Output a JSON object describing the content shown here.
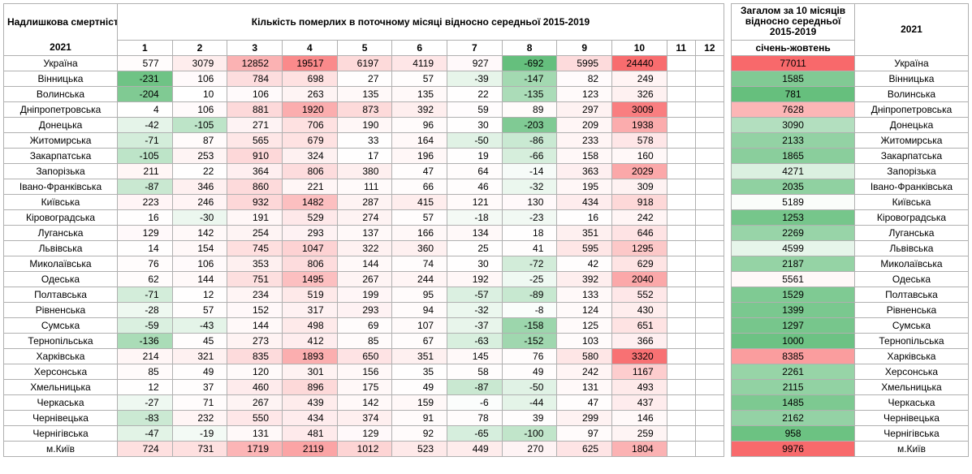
{
  "header": {
    "corner_top": "Надлишкова смертність",
    "corner_year": "2021",
    "monthly_title": "Кількість померлих  в поточному місяці відносно середньої 2015-2019",
    "total_title": "Загалом за 10 місяців відносно середньої 2015-2019",
    "total_sub": "січень-жовтень",
    "right_year": "2021",
    "months": [
      "1",
      "2",
      "3",
      "4",
      "5",
      "6",
      "7",
      "8",
      "9",
      "10",
      "11",
      "12"
    ]
  },
  "colors": {
    "min": "#63be7b",
    "mid": "#ffffff",
    "max": "#f8696b",
    "border": "#b0b0b0"
  },
  "month_scale": {
    "min": -250,
    "max": 3500
  },
  "total_scale": {
    "min": 700,
    "max": 10000
  },
  "ukraine_month_scale": {
    "min": -700,
    "max": 25000
  },
  "ukraine_total_color": "#f8696b",
  "rows": [
    {
      "region": "Україна",
      "m": [
        577,
        3079,
        12852,
        19517,
        6197,
        4119,
        927,
        -692,
        5995,
        24440,
        null,
        null
      ],
      "total": 77011,
      "is_total_row": true
    },
    {
      "region": "Вінницька",
      "m": [
        -231,
        106,
        784,
        698,
        27,
        57,
        -39,
        -147,
        82,
        249,
        null,
        null
      ],
      "total": 1585
    },
    {
      "region": "Волинська",
      "m": [
        -204,
        10,
        106,
        263,
        135,
        135,
        22,
        -135,
        123,
        326,
        null,
        null
      ],
      "total": 781
    },
    {
      "region": "Дніпропетровська",
      "m": [
        4,
        106,
        881,
        1920,
        873,
        392,
        59,
        89,
        297,
        3009,
        null,
        null
      ],
      "total": 7628
    },
    {
      "region": "Донецька",
      "m": [
        -42,
        -105,
        271,
        706,
        190,
        96,
        30,
        -203,
        209,
        1938,
        null,
        null
      ],
      "total": 3090
    },
    {
      "region": "Житомирська",
      "m": [
        -71,
        87,
        565,
        679,
        33,
        164,
        -50,
        -86,
        233,
        578,
        null,
        null
      ],
      "total": 2133
    },
    {
      "region": "Закарпатська",
      "m": [
        -105,
        253,
        910,
        324,
        17,
        196,
        19,
        -66,
        158,
        160,
        null,
        null
      ],
      "total": 1865
    },
    {
      "region": "Запорізька",
      "m": [
        211,
        22,
        364,
        806,
        380,
        47,
        64,
        -14,
        363,
        2029,
        null,
        null
      ],
      "total": 4271
    },
    {
      "region": "Івано-Франківська",
      "m": [
        -87,
        346,
        860,
        221,
        111,
        66,
        46,
        -32,
        195,
        309,
        null,
        null
      ],
      "total": 2035
    },
    {
      "region": "Київська",
      "m": [
        223,
        246,
        932,
        1482,
        287,
        415,
        121,
        130,
        434,
        918,
        null,
        null
      ],
      "total": 5189
    },
    {
      "region": "Кіровоградська",
      "m": [
        16,
        -30,
        191,
        529,
        274,
        57,
        -18,
        -23,
        16,
        242,
        null,
        null
      ],
      "total": 1253
    },
    {
      "region": "Луганська",
      "m": [
        129,
        142,
        254,
        293,
        137,
        166,
        134,
        18,
        351,
        646,
        null,
        null
      ],
      "total": 2269
    },
    {
      "region": "Львівська",
      "m": [
        14,
        154,
        745,
        1047,
        322,
        360,
        25,
        41,
        595,
        1295,
        null,
        null
      ],
      "total": 4599
    },
    {
      "region": "Миколаївська",
      "m": [
        76,
        106,
        353,
        806,
        144,
        74,
        30,
        -72,
        42,
        629,
        null,
        null
      ],
      "total": 2187
    },
    {
      "region": "Одеська",
      "m": [
        62,
        144,
        751,
        1495,
        267,
        244,
        192,
        -25,
        392,
        2040,
        null,
        null
      ],
      "total": 5561
    },
    {
      "region": "Полтавська",
      "m": [
        -71,
        12,
        234,
        519,
        199,
        95,
        -57,
        -89,
        133,
        552,
        null,
        null
      ],
      "total": 1529
    },
    {
      "region": "Рівненська",
      "m": [
        -28,
        57,
        152,
        317,
        293,
        94,
        -32,
        -8,
        124,
        430,
        null,
        null
      ],
      "total": 1399
    },
    {
      "region": "Сумська",
      "m": [
        -59,
        -43,
        144,
        498,
        69,
        107,
        -37,
        -158,
        125,
        651,
        null,
        null
      ],
      "total": 1297
    },
    {
      "region": "Тернопільська",
      "m": [
        -136,
        45,
        273,
        412,
        85,
        67,
        -63,
        -152,
        103,
        366,
        null,
        null
      ],
      "total": 1000
    },
    {
      "region": "Харківська",
      "m": [
        214,
        321,
        835,
        1893,
        650,
        351,
        145,
        76,
        580,
        3320,
        null,
        null
      ],
      "total": 8385
    },
    {
      "region": "Херсонська",
      "m": [
        85,
        49,
        120,
        301,
        156,
        35,
        58,
        49,
        242,
        1167,
        null,
        null
      ],
      "total": 2261
    },
    {
      "region": "Хмельницька",
      "m": [
        12,
        37,
        460,
        896,
        175,
        49,
        -87,
        -50,
        131,
        493,
        null,
        null
      ],
      "total": 2115
    },
    {
      "region": "Черкаська",
      "m": [
        -27,
        71,
        267,
        439,
        142,
        159,
        -6,
        -44,
        47,
        437,
        null,
        null
      ],
      "total": 1485
    },
    {
      "region": "Чернівецька",
      "m": [
        -83,
        232,
        550,
        434,
        374,
        91,
        78,
        39,
        299,
        146,
        null,
        null
      ],
      "total": 2162
    },
    {
      "region": "Чернігівська",
      "m": [
        -47,
        -19,
        131,
        481,
        129,
        92,
        -65,
        -100,
        97,
        259,
        null,
        null
      ],
      "total": 958
    },
    {
      "region": "м.Київ",
      "m": [
        724,
        731,
        1719,
        2119,
        1012,
        523,
        449,
        270,
        625,
        1804,
        null,
        null
      ],
      "total": 9976
    }
  ]
}
